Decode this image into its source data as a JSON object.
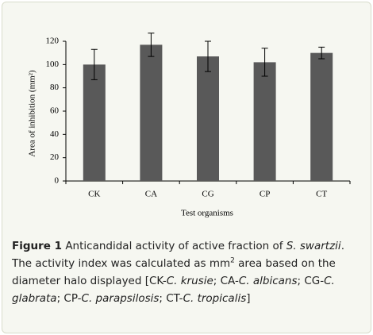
{
  "chart_data": {
    "type": "bar",
    "categories": [
      "CK",
      "CA",
      "CG",
      "CP",
      "CT"
    ],
    "values": [
      100,
      117,
      107,
      102,
      110
    ],
    "errors": [
      13,
      10,
      13,
      12,
      5
    ],
    "color": "#595959",
    "ylim": [
      0,
      120
    ],
    "yticks": [
      0,
      20,
      40,
      60,
      80,
      100,
      120
    ],
    "ylabel": "Area of inhibition (mm²)",
    "xlabel": "Test organisms",
    "grid": false
  },
  "caption": [
    {
      "text": "Figure 1",
      "style": "bold"
    },
    {
      "text": " Anticandidal activity of active fraction of ",
      "style": "normal"
    },
    {
      "text": "S. swartzii",
      "style": "italic"
    },
    {
      "text": ". The activity index was calculated as mm",
      "style": "normal"
    },
    {
      "text": "2",
      "style": "sup"
    },
    {
      "text": " area based on the diameter halo displayed [CK-",
      "style": "normal"
    },
    {
      "text": "C. krusie",
      "style": "italic"
    },
    {
      "text": "; CA-",
      "style": "normal"
    },
    {
      "text": "C. albicans",
      "style": "italic"
    },
    {
      "text": "; CG-",
      "style": "normal"
    },
    {
      "text": "C. glabrata",
      "style": "italic"
    },
    {
      "text": "; CP-",
      "style": "normal"
    },
    {
      "text": "C. parapsilosis",
      "style": "italic"
    },
    {
      "text": "; CT-",
      "style": "normal"
    },
    {
      "text": "C. tropicalis",
      "style": "italic"
    },
    {
      "text": "]",
      "style": "normal"
    }
  ]
}
